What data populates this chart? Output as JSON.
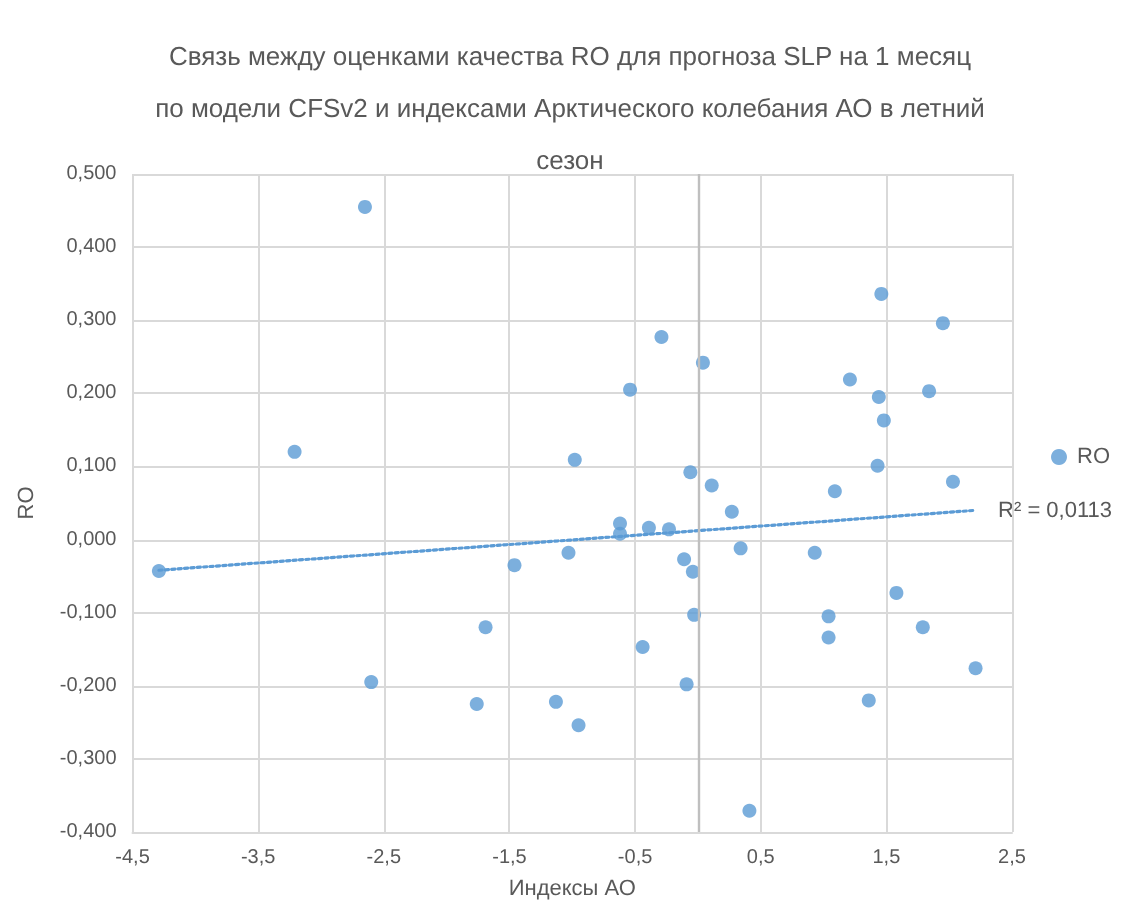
{
  "chart_data": {
    "type": "scatter",
    "title": "Связь между оценками качества RO для прогноза SLP на 1 месяц по модели CFSv2 и индексами Арктического колебания АО в летний сезон",
    "xlabel": "Индексы АО",
    "ylabel": "RO",
    "series": [
      {
        "name": "RO",
        "color": "#5b9bd5",
        "marker": "circle",
        "x": [
          -2.65,
          -3.21,
          -0.98,
          1.46,
          1.95,
          -0.29,
          0.04,
          -0.54,
          1.21,
          1.44,
          1.84,
          1.48,
          1.43,
          -0.06,
          0.11,
          2.03,
          1.09,
          0.27,
          -0.62,
          -0.62,
          -0.39,
          -0.23,
          -1.03,
          -0.11,
          0.34,
          0.93,
          -0.04,
          -0.03,
          -0.44,
          -0.09,
          -0.95,
          0.41,
          1.04,
          1.04,
          1.58,
          1.79,
          2.21,
          1.36,
          -4.29,
          -1.46,
          -1.69,
          -2.6,
          -1.76,
          -1.13
        ],
        "values": [
          0.455,
          0.12,
          0.109,
          0.336,
          0.296,
          0.277,
          0.242,
          0.205,
          0.219,
          0.195,
          0.203,
          0.163,
          0.101,
          0.092,
          0.074,
          0.079,
          0.066,
          0.038,
          0.022,
          0.008,
          0.016,
          0.014,
          -0.018,
          -0.027,
          -0.012,
          -0.018,
          -0.044,
          -0.103,
          -0.147,
          -0.198,
          -0.254,
          -0.371,
          -0.105,
          -0.134,
          -0.073,
          -0.12,
          -0.176,
          -0.22,
          -0.043,
          -0.035,
          -0.12,
          -0.195,
          -0.225,
          -0.222
        ]
      },
      {
        "type": "line",
        "color": "#5b9bd5",
        "line_style": "dotted",
        "marker": "none",
        "x": [
          -4.29,
          2.21
        ],
        "values": [
          -0.042,
          0.04
        ]
      }
    ],
    "xlim": [
      -4.5,
      2.5
    ],
    "xticks": [
      {
        "value": -4.5,
        "label": "-4,5"
      },
      {
        "value": -3.5,
        "label": "-3,5"
      },
      {
        "value": -2.5,
        "label": "-2,5"
      },
      {
        "value": -1.5,
        "label": "-1,5"
      },
      {
        "value": -0.5,
        "label": "-0,5"
      },
      {
        "value": 0.5,
        "label": "0,5"
      },
      {
        "value": 1.5,
        "label": "1,5"
      },
      {
        "value": 2.5,
        "label": "2,5"
      }
    ],
    "ylim": [
      -0.4,
      0.5
    ],
    "yticks": [
      {
        "value": -0.4,
        "label": "-0,400"
      },
      {
        "value": -0.3,
        "label": "-0,300"
      },
      {
        "value": -0.2,
        "label": "-0,200"
      },
      {
        "value": -0.1,
        "label": "-0,100"
      },
      {
        "value": 0,
        "label": "0,000"
      },
      {
        "value": 0.1,
        "label": "0,100"
      },
      {
        "value": 0.2,
        "label": "0,200"
      },
      {
        "value": 0.3,
        "label": "0,300"
      },
      {
        "value": 0.4,
        "label": "0,400"
      },
      {
        "value": 0.5,
        "label": "0,500"
      }
    ],
    "ref_lines": [
      {
        "axis": "x",
        "value": 0,
        "color": "#bfbfbf"
      }
    ],
    "grid": true,
    "legend": "right",
    "annotations": [
      "R² = 0,0113"
    ]
  }
}
